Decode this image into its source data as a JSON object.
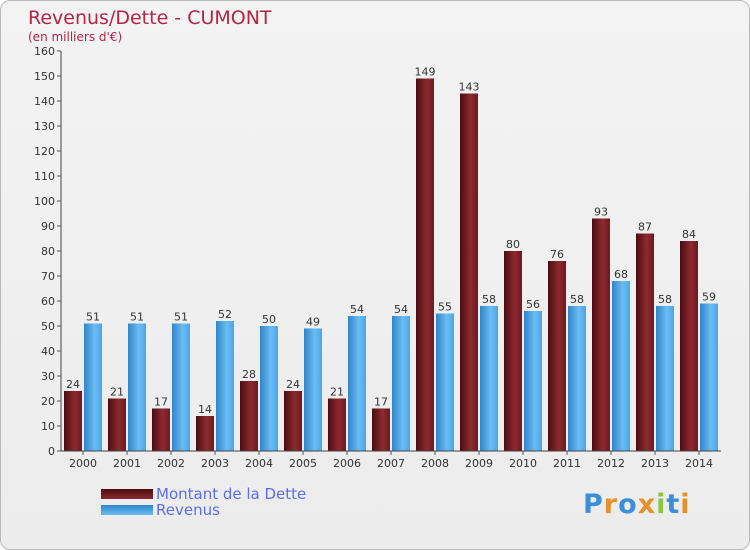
{
  "chart_data": {
    "type": "bar",
    "title": "Revenus/Dette - CUMONT",
    "subtitle": "(en milliers d'€)",
    "categories": [
      "2000",
      "2001",
      "2002",
      "2003",
      "2004",
      "2005",
      "2006",
      "2007",
      "2008",
      "2009",
      "2010",
      "2011",
      "2012",
      "2013",
      "2014"
    ],
    "series": [
      {
        "name": "Montant de la Dette",
        "color": "#7a1f24",
        "values": [
          24,
          21,
          17,
          14,
          28,
          24,
          21,
          17,
          149,
          143,
          80,
          76,
          93,
          87,
          84
        ]
      },
      {
        "name": "Revenus",
        "color": "#4aa6e8",
        "values": [
          51,
          51,
          51,
          52,
          50,
          49,
          54,
          54,
          55,
          58,
          56,
          58,
          68,
          58,
          59
        ]
      }
    ],
    "ylim": [
      0,
      160
    ],
    "yticks": [
      0,
      10,
      20,
      30,
      40,
      50,
      60,
      70,
      80,
      90,
      100,
      110,
      120,
      130,
      140,
      150,
      160
    ],
    "grid": false,
    "legend_position": "bottom-left"
  },
  "logo": {
    "letters": [
      {
        "char": "P",
        "color": "#3a8fd8"
      },
      {
        "char": "r",
        "color": "#e8902a"
      },
      {
        "char": "o",
        "color": "#3a8fd8"
      },
      {
        "char": "x",
        "color": "#e8902a"
      },
      {
        "char": "i",
        "color": "#8cc63e"
      },
      {
        "char": "t",
        "color": "#3a8fd8"
      },
      {
        "char": "i",
        "color": "#e8902a"
      }
    ]
  }
}
